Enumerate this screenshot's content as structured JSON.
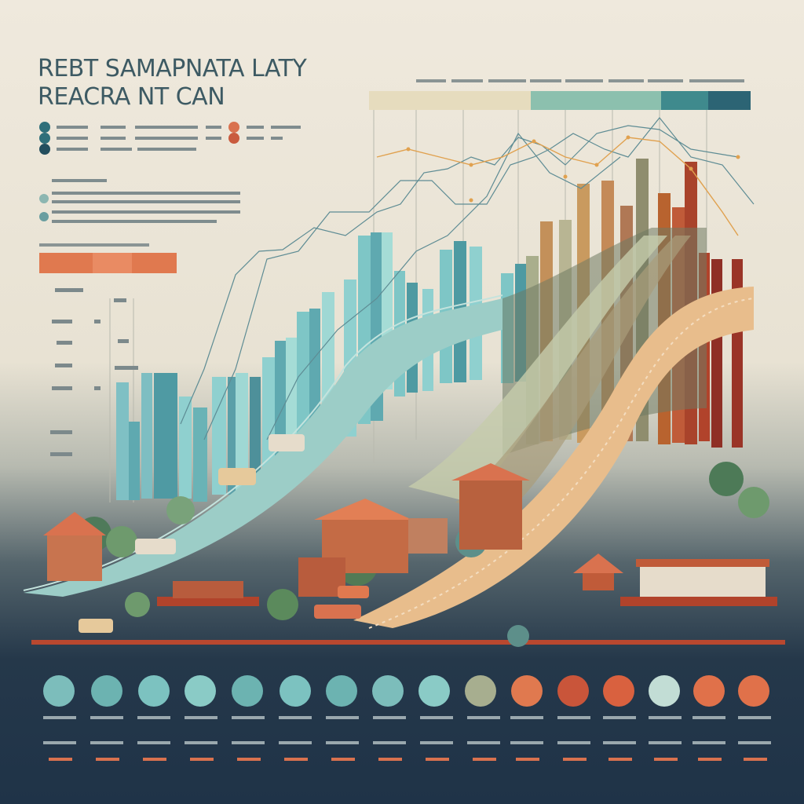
{
  "title": {
    "line1": "REBT SAMAPNATA LATY",
    "line2": "REACRA NT CAN"
  },
  "colors": {
    "teal_dark": "#2f6f7a",
    "teal": "#5fb3b3",
    "teal_light": "#8fd0cf",
    "sage": "#a7ae8f",
    "tan": "#c99a5f",
    "orange": "#e0794f",
    "rust": "#b9482f",
    "navy": "#22364a"
  },
  "icons": [
    "house-icon",
    "car-icon",
    "tree-icon",
    "pagoda-icon"
  ]
}
